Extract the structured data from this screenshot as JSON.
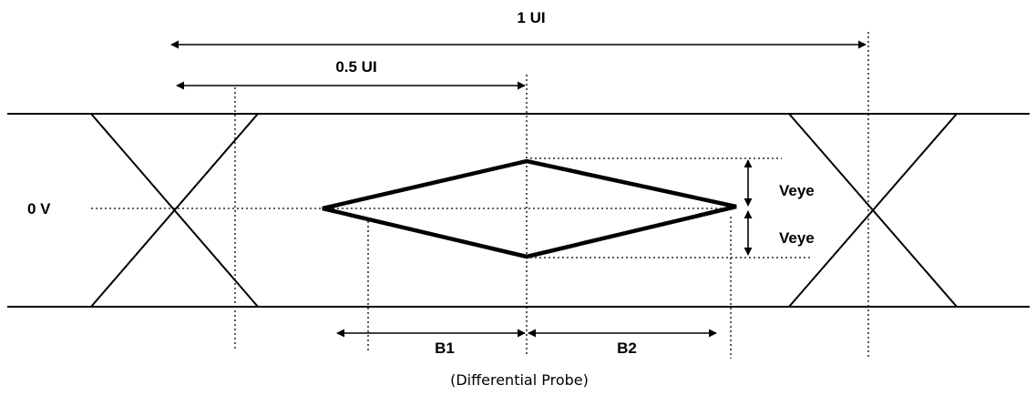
{
  "labels": {
    "one_ui": "1 UI",
    "half_ui": "0.5 UI",
    "zero_v": "0 V",
    "veye_top": "Veye",
    "veye_bottom": "Veye",
    "b1": "B1",
    "b2": "B2",
    "caption": "(Differential Probe)"
  }
}
